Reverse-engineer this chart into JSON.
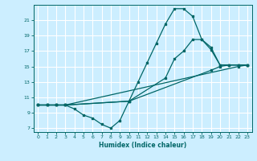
{
  "xlabel": "Humidex (Indice chaleur)",
  "bg_color": "#cceeff",
  "grid_color": "#ffffff",
  "line_color": "#006666",
  "xlim": [
    -0.5,
    23.5
  ],
  "ylim": [
    6.5,
    23.0
  ],
  "xticks": [
    0,
    1,
    2,
    3,
    4,
    5,
    6,
    7,
    8,
    9,
    10,
    11,
    12,
    13,
    14,
    15,
    16,
    17,
    18,
    19,
    20,
    21,
    22,
    23
  ],
  "yticks": [
    7,
    9,
    11,
    13,
    15,
    17,
    19,
    21
  ],
  "line1_x": [
    0,
    1,
    2,
    3,
    4,
    5,
    6,
    7,
    8,
    9,
    10,
    11,
    12,
    13,
    14,
    15,
    16,
    17,
    18,
    19,
    20,
    21,
    22,
    23
  ],
  "line1_y": [
    10,
    10,
    10,
    10,
    9.5,
    8.7,
    8.3,
    7.5,
    7.0,
    8.0,
    10.5,
    13.0,
    15.5,
    18.0,
    20.5,
    22.5,
    22.5,
    21.5,
    18.5,
    17.2,
    15.2,
    15.2,
    15.2,
    15.2
  ],
  "line2_x": [
    0,
    1,
    2,
    3,
    10,
    14,
    15,
    16,
    17,
    18,
    19,
    20,
    21,
    22,
    23
  ],
  "line2_y": [
    10,
    10,
    10,
    10,
    10.5,
    13.5,
    16.0,
    17.0,
    18.5,
    18.5,
    17.5,
    15.2,
    15.2,
    15.2,
    15.2
  ],
  "line3_x": [
    0,
    1,
    2,
    3,
    10,
    19,
    20,
    21,
    22,
    23
  ],
  "line3_y": [
    10,
    10,
    10,
    10,
    10.5,
    14.5,
    15.0,
    15.2,
    15.2,
    15.2
  ],
  "line4_x": [
    0,
    1,
    2,
    3,
    22,
    23
  ],
  "line4_y": [
    10,
    10,
    10,
    10,
    15.0,
    15.2
  ]
}
